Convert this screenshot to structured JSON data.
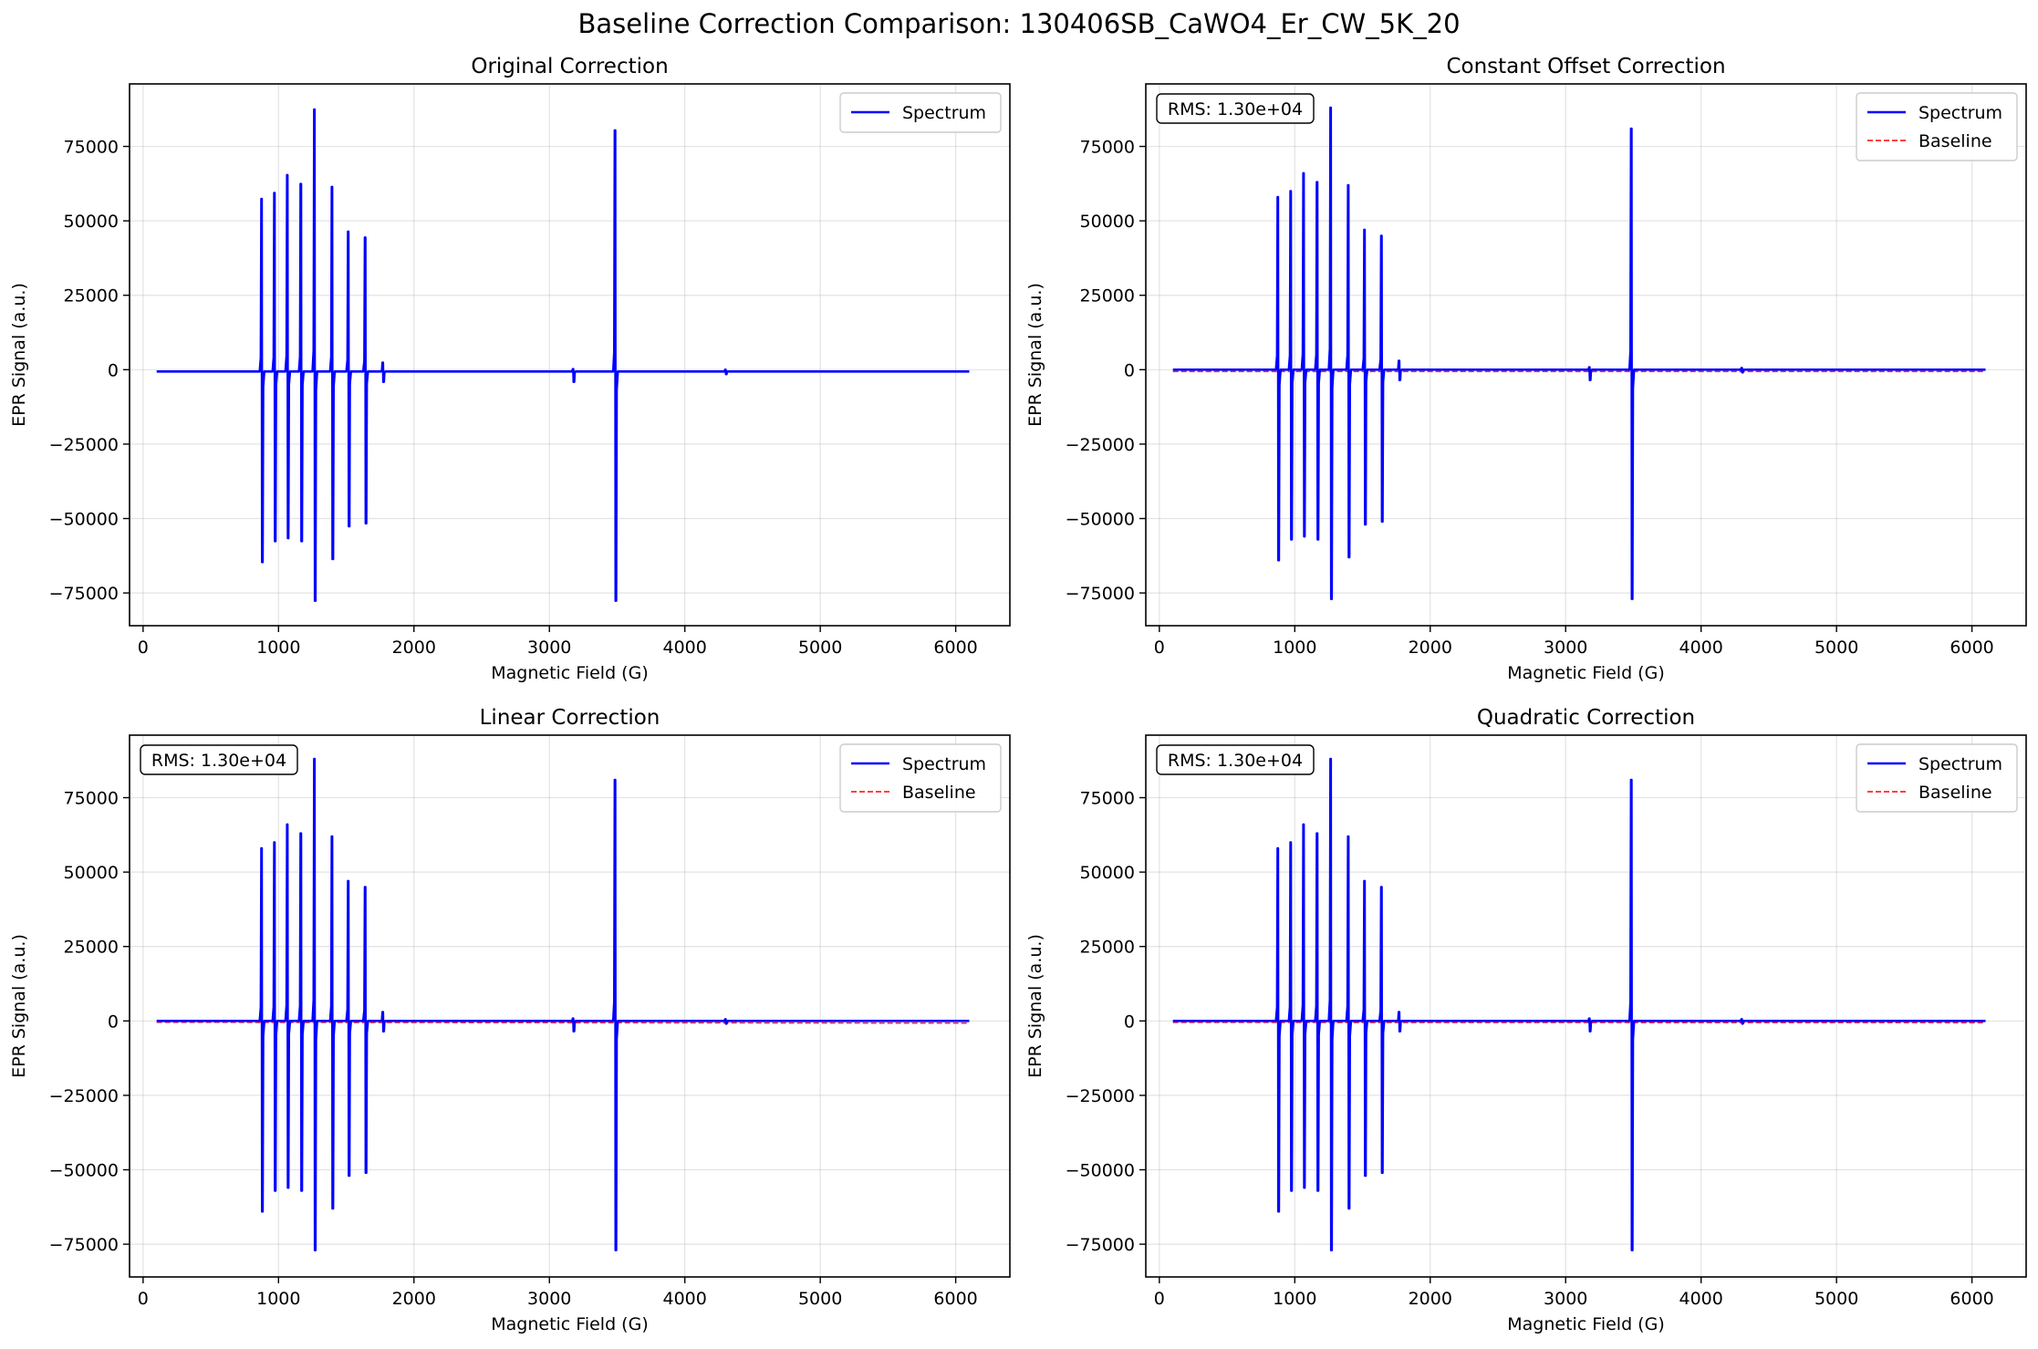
{
  "figure": {
    "suptitle": "Baseline Correction Comparison: 130406SB_CaWO4_Er_CW_5K_20"
  },
  "chart_data": [
    {
      "type": "line",
      "title": "Original Correction",
      "xlabel": "Magnetic Field (G)",
      "ylabel": "EPR Signal (a.u.)",
      "xlim": [
        -100,
        6400
      ],
      "ylim": [
        -86000,
        96000
      ],
      "xticks": [
        0,
        1000,
        2000,
        3000,
        4000,
        5000,
        6000
      ],
      "yticks": [
        -75000,
        -50000,
        -25000,
        0,
        25000,
        50000,
        75000
      ],
      "grid": true,
      "legend": "top-right",
      "offset": -600,
      "rms": "",
      "series": [
        {
          "name": "Spectrum",
          "color": "#0000ff",
          "style": "solid"
        }
      ],
      "peaks": [
        {
          "x": 875,
          "top": 58000,
          "bottom": -64000
        },
        {
          "x": 970,
          "top": 60000,
          "bottom": -57000
        },
        {
          "x": 1065,
          "top": 66000,
          "bottom": -56000
        },
        {
          "x": 1165,
          "top": 63000,
          "bottom": -57000
        },
        {
          "x": 1265,
          "top": 88000,
          "bottom": -77000
        },
        {
          "x": 1395,
          "top": 62000,
          "bottom": -63000
        },
        {
          "x": 1515,
          "top": 47000,
          "bottom": -52000
        },
        {
          "x": 1640,
          "top": 45000,
          "bottom": -51000
        },
        {
          "x": 1770,
          "top": 3000,
          "bottom": -3500
        },
        {
          "x": 3175,
          "top": 800,
          "bottom": -3500
        },
        {
          "x": 3485,
          "top": 81000,
          "bottom": -77000
        },
        {
          "x": 4300,
          "top": 600,
          "bottom": -900
        }
      ]
    },
    {
      "type": "line",
      "title": "Constant Offset Correction",
      "xlabel": "Magnetic Field (G)",
      "ylabel": "EPR Signal (a.u.)",
      "xlim": [
        -100,
        6400
      ],
      "ylim": [
        -86000,
        96000
      ],
      "xticks": [
        0,
        1000,
        2000,
        3000,
        4000,
        5000,
        6000
      ],
      "yticks": [
        -75000,
        -50000,
        -25000,
        0,
        25000,
        50000,
        75000
      ],
      "grid": true,
      "legend": "top-right",
      "offset": 0,
      "rms": "RMS: 1.30e+04",
      "series": [
        {
          "name": "Spectrum",
          "color": "#0000ff",
          "style": "solid"
        },
        {
          "name": "Baseline",
          "color": "#ff0000",
          "style": "dashed",
          "y0": -600,
          "y1": -600
        }
      ],
      "peaks": [
        {
          "x": 875,
          "top": 58000,
          "bottom": -64000
        },
        {
          "x": 970,
          "top": 60000,
          "bottom": -57000
        },
        {
          "x": 1065,
          "top": 66000,
          "bottom": -56000
        },
        {
          "x": 1165,
          "top": 63000,
          "bottom": -57000
        },
        {
          "x": 1265,
          "top": 88000,
          "bottom": -77000
        },
        {
          "x": 1395,
          "top": 62000,
          "bottom": -63000
        },
        {
          "x": 1515,
          "top": 47000,
          "bottom": -52000
        },
        {
          "x": 1640,
          "top": 45000,
          "bottom": -51000
        },
        {
          "x": 1770,
          "top": 3000,
          "bottom": -3500
        },
        {
          "x": 3175,
          "top": 800,
          "bottom": -3500
        },
        {
          "x": 3485,
          "top": 81000,
          "bottom": -77000
        },
        {
          "x": 4300,
          "top": 600,
          "bottom": -900
        }
      ]
    },
    {
      "type": "line",
      "title": "Linear Correction",
      "xlabel": "Magnetic Field (G)",
      "ylabel": "EPR Signal (a.u.)",
      "xlim": [
        -100,
        6400
      ],
      "ylim": [
        -86000,
        96000
      ],
      "xticks": [
        0,
        1000,
        2000,
        3000,
        4000,
        5000,
        6000
      ],
      "yticks": [
        -75000,
        -50000,
        -25000,
        0,
        25000,
        50000,
        75000
      ],
      "grid": true,
      "legend": "top-right",
      "offset": 0,
      "rms": "RMS: 1.30e+04",
      "series": [
        {
          "name": "Spectrum",
          "color": "#0000ff",
          "style": "solid"
        },
        {
          "name": "Baseline",
          "color": "#ff0000",
          "style": "dashed",
          "y0": -450,
          "y1": -750
        }
      ],
      "peaks": [
        {
          "x": 875,
          "top": 58000,
          "bottom": -64000
        },
        {
          "x": 970,
          "top": 60000,
          "bottom": -57000
        },
        {
          "x": 1065,
          "top": 66000,
          "bottom": -56000
        },
        {
          "x": 1165,
          "top": 63000,
          "bottom": -57000
        },
        {
          "x": 1265,
          "top": 88000,
          "bottom": -77000
        },
        {
          "x": 1395,
          "top": 62000,
          "bottom": -63000
        },
        {
          "x": 1515,
          "top": 47000,
          "bottom": -52000
        },
        {
          "x": 1640,
          "top": 45000,
          "bottom": -51000
        },
        {
          "x": 1770,
          "top": 3000,
          "bottom": -3500
        },
        {
          "x": 3175,
          "top": 800,
          "bottom": -3500
        },
        {
          "x": 3485,
          "top": 81000,
          "bottom": -77000
        },
        {
          "x": 4300,
          "top": 600,
          "bottom": -900
        }
      ]
    },
    {
      "type": "line",
      "title": "Quadratic Correction",
      "xlabel": "Magnetic Field (G)",
      "ylabel": "EPR Signal (a.u.)",
      "xlim": [
        -100,
        6400
      ],
      "ylim": [
        -86000,
        96000
      ],
      "xticks": [
        0,
        1000,
        2000,
        3000,
        4000,
        5000,
        6000
      ],
      "yticks": [
        -75000,
        -50000,
        -25000,
        0,
        25000,
        50000,
        75000
      ],
      "grid": true,
      "legend": "top-right",
      "offset": 0,
      "rms": "RMS: 1.30e+04",
      "series": [
        {
          "name": "Spectrum",
          "color": "#0000ff",
          "style": "solid"
        },
        {
          "name": "Baseline",
          "color": "#ff0000",
          "style": "dashed",
          "y0": -500,
          "y1": -600
        }
      ],
      "peaks": [
        {
          "x": 875,
          "top": 58000,
          "bottom": -64000
        },
        {
          "x": 970,
          "top": 60000,
          "bottom": -57000
        },
        {
          "x": 1065,
          "top": 66000,
          "bottom": -56000
        },
        {
          "x": 1165,
          "top": 63000,
          "bottom": -57000
        },
        {
          "x": 1265,
          "top": 88000,
          "bottom": -77000
        },
        {
          "x": 1395,
          "top": 62000,
          "bottom": -63000
        },
        {
          "x": 1515,
          "top": 47000,
          "bottom": -52000
        },
        {
          "x": 1640,
          "top": 45000,
          "bottom": -51000
        },
        {
          "x": 1770,
          "top": 3000,
          "bottom": -3500
        },
        {
          "x": 3175,
          "top": 800,
          "bottom": -3500
        },
        {
          "x": 3485,
          "top": 81000,
          "bottom": -77000
        },
        {
          "x": 4300,
          "top": 600,
          "bottom": -900
        }
      ]
    }
  ]
}
